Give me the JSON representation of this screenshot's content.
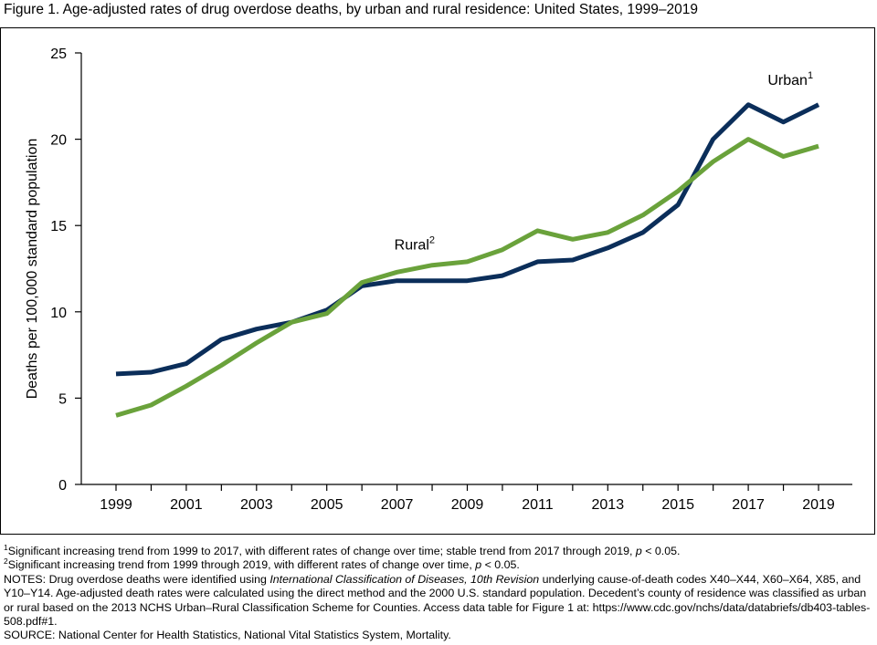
{
  "figure": {
    "title": "Figure 1. Age-adjusted rates of drug overdose deaths, by urban and rural residence: United States, 1999–2019"
  },
  "chart_data": {
    "type": "line",
    "title": "Figure 1. Age-adjusted rates of drug overdose deaths, by urban and rural residence: United States, 1999–2019",
    "xlabel": "",
    "ylabel": "Deaths per 100,000 standard population",
    "x": [
      1999,
      2000,
      2001,
      2002,
      2003,
      2004,
      2005,
      2006,
      2007,
      2008,
      2009,
      2010,
      2011,
      2012,
      2013,
      2014,
      2015,
      2016,
      2017,
      2018,
      2019
    ],
    "xtick_labels": [
      "1999",
      "2001",
      "2003",
      "2005",
      "2007",
      "2009",
      "2011",
      "2013",
      "2015",
      "2017",
      "2019"
    ],
    "ytick_labels": [
      "0",
      "5",
      "10",
      "15",
      "20",
      "25"
    ],
    "ylim": [
      0,
      25
    ],
    "xlim": [
      1999,
      2019
    ],
    "grid": false,
    "series": [
      {
        "name": "Urban",
        "superscript": "1",
        "color": "#0b2e5a",
        "values": [
          6.4,
          6.5,
          7.0,
          8.4,
          9.0,
          9.4,
          10.1,
          11.5,
          11.8,
          11.8,
          11.8,
          12.1,
          12.9,
          13.0,
          13.7,
          14.6,
          16.2,
          20.0,
          22.0,
          21.0,
          22.0
        ]
      },
      {
        "name": "Rural",
        "superscript": "2",
        "color": "#6aa23b",
        "values": [
          4.0,
          4.6,
          5.7,
          6.9,
          8.2,
          9.4,
          9.9,
          11.7,
          12.3,
          12.7,
          12.9,
          13.6,
          14.7,
          14.2,
          14.6,
          15.6,
          17.0,
          18.7,
          20.0,
          19.0,
          19.6
        ]
      }
    ]
  },
  "footnotes": {
    "fn1": {
      "marker": "1",
      "pre": "Significant increasing trend from 1999 to 2017, with different rates of change over time; stable trend from 2017 through 2019, ",
      "italic": "p",
      "post": " < 0.05."
    },
    "fn2": {
      "marker": "2",
      "pre": "Significant increasing trend from 1999 through 2019, with different rates of change over time, ",
      "italic": "p",
      "post": " < 0.05."
    },
    "notes": {
      "pre": "NOTES: Drug overdose deaths were identified using ",
      "italic": "International Classification of Diseases, 10th Revision",
      "post": " underlying cause-of-death codes X40–X44, X60–X64, X85, and Y10–Y14. Age-adjusted death rates were calculated using the direct method and the 2000 U.S. standard population. Decedent’s county of residence was classified as urban or rural based on the 2013 NCHS Urban–Rural Classification Scheme for Counties. Access data table for Figure 1 at: https://www.cdc.gov/nchs/data/databriefs/db403-tables-508.pdf#1."
    },
    "source": "SOURCE: National Center for Health Statistics, National Vital Statistics System, Mortality."
  }
}
